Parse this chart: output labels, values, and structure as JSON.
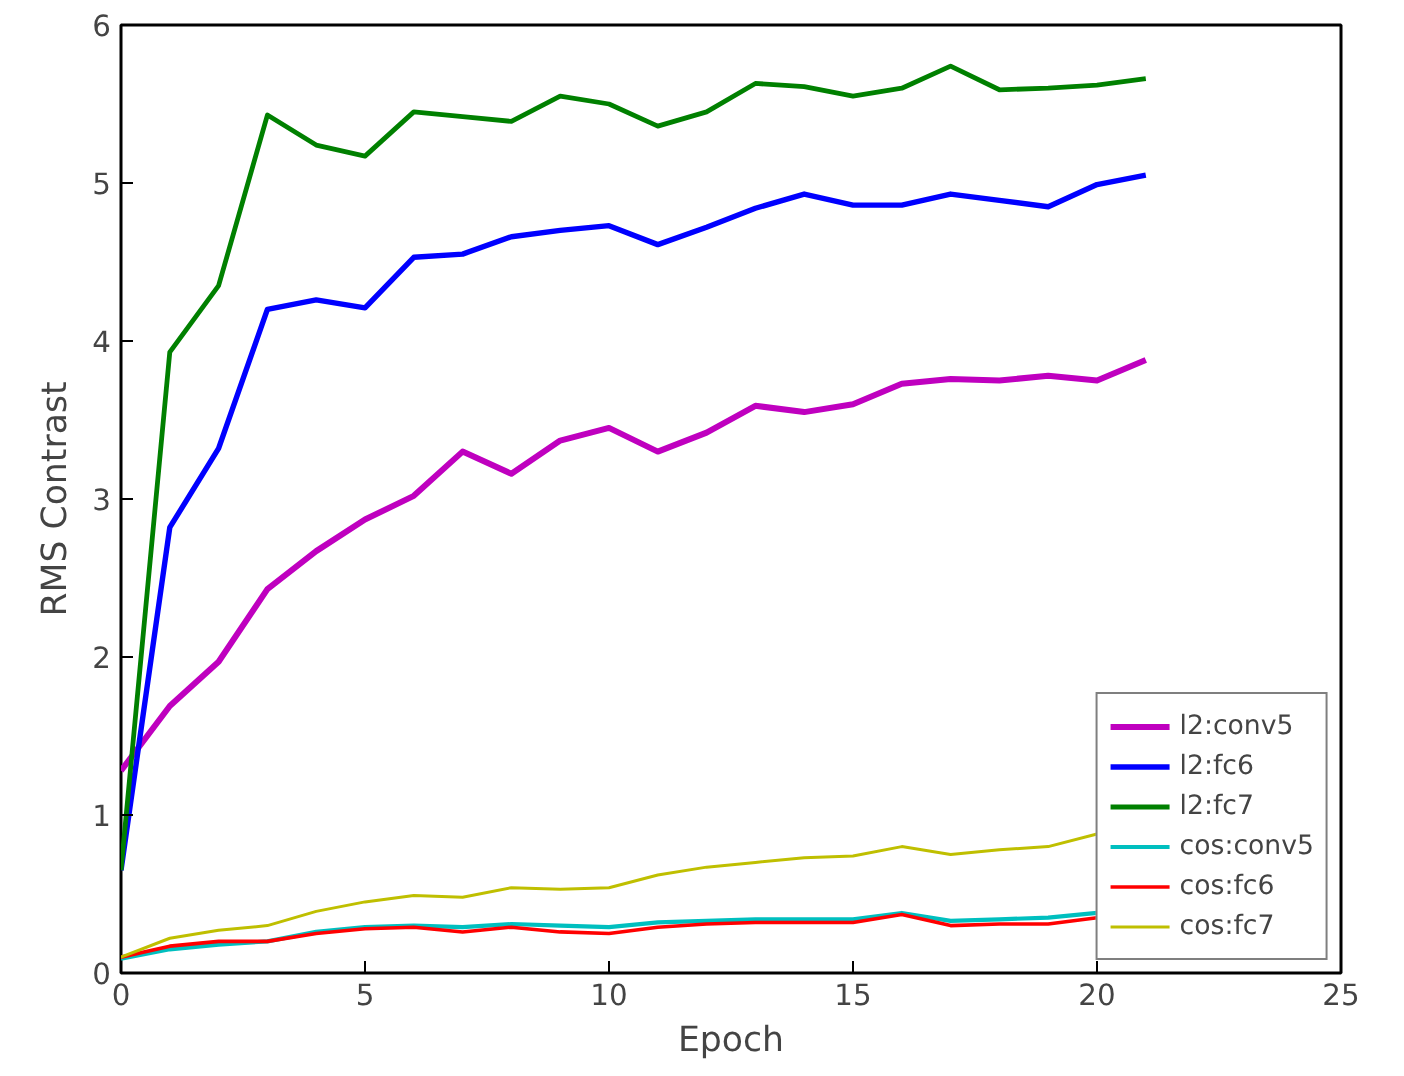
{
  "chart_data": {
    "type": "line",
    "xlabel": "Epoch",
    "ylabel": "RMS Contrast",
    "x": [
      0,
      1,
      2,
      3,
      4,
      5,
      6,
      7,
      8,
      9,
      10,
      11,
      12,
      13,
      14,
      15,
      16,
      17,
      18,
      19,
      20,
      21
    ],
    "xlim": [
      0,
      25
    ],
    "xticks": [
      0,
      5,
      10,
      15,
      20,
      25
    ],
    "ylim": [
      0,
      6
    ],
    "yticks": [
      0,
      1,
      2,
      3,
      4,
      5,
      6
    ],
    "grid": false,
    "legend": "bottom right",
    "line_style": "solid",
    "series": [
      {
        "name": "l2:conv5",
        "color": "#bf00bf",
        "values": [
          1.28,
          1.69,
          1.97,
          2.43,
          2.67,
          2.87,
          3.02,
          3.3,
          3.16,
          3.37,
          3.45,
          3.3,
          3.42,
          3.59,
          3.55,
          3.6,
          3.73,
          3.76,
          3.75,
          3.78,
          3.75,
          3.88
        ]
      },
      {
        "name": "l2:fc6",
        "color": "#0000ff",
        "values": [
          0.65,
          2.82,
          3.32,
          4.2,
          4.26,
          4.21,
          4.53,
          4.55,
          4.66,
          4.7,
          4.73,
          4.61,
          4.72,
          4.84,
          4.93,
          4.86,
          4.86,
          4.93,
          4.89,
          4.85,
          4.99,
          5.05
        ]
      },
      {
        "name": "l2:fc7",
        "color": "#008000",
        "values": [
          0.65,
          3.93,
          4.35,
          5.43,
          5.24,
          5.17,
          5.45,
          5.42,
          5.39,
          5.55,
          5.5,
          5.36,
          5.45,
          5.63,
          5.61,
          5.55,
          5.6,
          5.74,
          5.59,
          5.6,
          5.62,
          5.66
        ]
      },
      {
        "name": "cos:conv5",
        "color": "#00bfbf",
        "values": [
          0.09,
          0.15,
          0.18,
          0.2,
          0.26,
          0.29,
          0.3,
          0.29,
          0.31,
          0.3,
          0.29,
          0.32,
          0.33,
          0.34,
          0.34,
          0.34,
          0.38,
          0.33,
          0.34,
          0.35,
          0.38,
          null
        ]
      },
      {
        "name": "cos:fc6",
        "color": "#ff0000",
        "values": [
          0.1,
          0.17,
          0.2,
          0.2,
          0.25,
          0.28,
          0.29,
          0.26,
          0.29,
          0.26,
          0.25,
          0.29,
          0.31,
          0.32,
          0.32,
          0.32,
          0.37,
          0.3,
          0.31,
          0.31,
          0.35,
          null
        ]
      },
      {
        "name": "cos:fc7",
        "color": "#bfbf00",
        "values": [
          0.1,
          0.22,
          0.27,
          0.3,
          0.39,
          0.45,
          0.49,
          0.48,
          0.54,
          0.53,
          0.54,
          0.62,
          0.67,
          0.7,
          0.73,
          0.74,
          0.8,
          0.75,
          0.78,
          0.8,
          0.88,
          null
        ]
      }
    ]
  }
}
